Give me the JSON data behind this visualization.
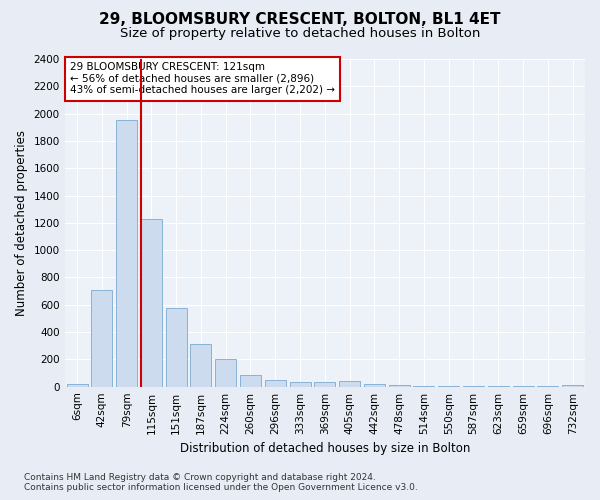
{
  "title": "29, BLOOMSBURY CRESCENT, BOLTON, BL1 4ET",
  "subtitle": "Size of property relative to detached houses in Bolton",
  "xlabel": "Distribution of detached houses by size in Bolton",
  "ylabel": "Number of detached properties",
  "categories": [
    "6sqm",
    "42sqm",
    "79sqm",
    "115sqm",
    "151sqm",
    "187sqm",
    "224sqm",
    "260sqm",
    "296sqm",
    "333sqm",
    "369sqm",
    "405sqm",
    "442sqm",
    "478sqm",
    "514sqm",
    "550sqm",
    "587sqm",
    "623sqm",
    "659sqm",
    "696sqm",
    "732sqm"
  ],
  "values": [
    20,
    710,
    1950,
    1230,
    575,
    310,
    200,
    85,
    50,
    35,
    35,
    40,
    20,
    10,
    5,
    2,
    2,
    2,
    2,
    2,
    15
  ],
  "bar_color": "#ccdcee",
  "bar_edge_color": "#7aaad0",
  "vline_x_index": 3,
  "vline_color": "#cc0000",
  "ylim": [
    0,
    2400
  ],
  "yticks": [
    0,
    200,
    400,
    600,
    800,
    1000,
    1200,
    1400,
    1600,
    1800,
    2000,
    2200,
    2400
  ],
  "annotation_text": "29 BLOOMSBURY CRESCENT: 121sqm\n← 56% of detached houses are smaller (2,896)\n43% of semi-detached houses are larger (2,202) →",
  "annotation_box_color": "#ffffff",
  "annotation_box_edge": "#cc0000",
  "footer_text": "Contains HM Land Registry data © Crown copyright and database right 2024.\nContains public sector information licensed under the Open Government Licence v3.0.",
  "bg_color": "#e8edf5",
  "plot_bg_color": "#edf1f8",
  "title_fontsize": 11,
  "subtitle_fontsize": 9.5,
  "axis_label_fontsize": 8.5,
  "tick_fontsize": 7.5,
  "footer_fontsize": 6.5
}
